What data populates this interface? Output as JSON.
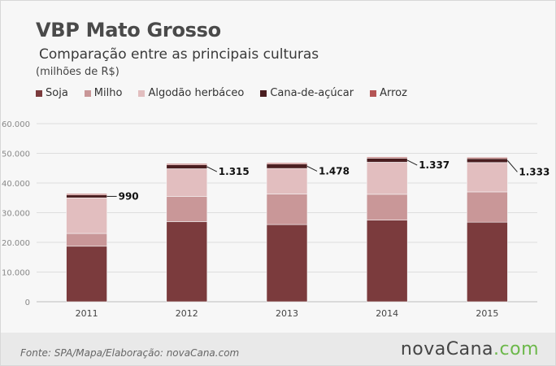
{
  "header": {
    "title": "VBP Mato Grosso",
    "subtitle": "Comparação entre as principais culturas",
    "unit": "(milhões de R$)"
  },
  "legend": [
    {
      "label": "Soja",
      "color": "#7b3b3d"
    },
    {
      "label": "Milho",
      "color": "#c99798"
    },
    {
      "label": "Algodão herbáceo",
      "color": "#e2bebf"
    },
    {
      "label": "Cana-de-açúcar",
      "color": "#4a1e20"
    },
    {
      "label": "Arroz",
      "color": "#b45454"
    }
  ],
  "chart_data": {
    "type": "bar",
    "stacked": true,
    "categories": [
      "2011",
      "2012",
      "2013",
      "2014",
      "2015"
    ],
    "series": [
      {
        "name": "Soja",
        "color": "#7b3b3d",
        "values": [
          18700,
          27000,
          26000,
          27500,
          26800
        ]
      },
      {
        "name": "Milho",
        "color": "#c99798",
        "values": [
          4300,
          8500,
          10300,
          8700,
          10200
        ]
      },
      {
        "name": "Algodão herbáceo",
        "color": "#e2bebf",
        "values": [
          12000,
          9300,
          8600,
          10800,
          9900
        ]
      },
      {
        "name": "Cana-de-açúcar",
        "color": "#4a1e20",
        "values": [
          990,
          1315,
          1478,
          1337,
          1333
        ]
      },
      {
        "name": "Arroz",
        "color": "#b45454",
        "values": [
          400,
          400,
          400,
          400,
          400
        ]
      }
    ],
    "annotations": [
      "990",
      "1.315",
      "1.478",
      "1.337",
      "1.333"
    ],
    "yticks": [
      "0",
      "10.000",
      "20.000",
      "30.000",
      "40.000",
      "50.000",
      "60.000"
    ],
    "ylim": [
      0,
      60000
    ],
    "grid": true,
    "legend_position": "top"
  },
  "footer": {
    "source": "Fonte: SPA/Mapa/Elaboração: novaCana.com",
    "brand_main": "novaCana",
    "brand_suffix": ".com"
  }
}
